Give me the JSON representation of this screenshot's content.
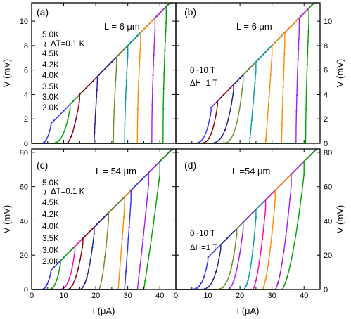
{
  "chart_data": [
    {
      "panel": "(a)",
      "type": "line",
      "xlabel": "I (μA)",
      "ylabel": "V (mV)",
      "xlim": [
        0,
        45
      ],
      "ylim": [
        0,
        11.5
      ],
      "xticks": [
        0,
        10,
        20,
        30,
        40
      ],
      "yticks": [
        0,
        2,
        4,
        6,
        8,
        10
      ],
      "y_axis_side": "left",
      "annotations": {
        "length": "L = 6 μm",
        "params": [
          "5.0K",
          "ΔT=0.1 K",
          "4.5K",
          "4.2K",
          "4.0K",
          "3.5K",
          "3.0K",
          "2.0K"
        ]
      },
      "normal_slope_mV_per_uA": 0.2667,
      "series": [
        {
          "color": "#3030ff",
          "switch_current": 6,
          "onset": 3,
          "knee": 2
        },
        {
          "color": "#00a000",
          "switch_current": 12,
          "onset": 6,
          "knee": 2.5
        },
        {
          "color": "#8b0000",
          "switch_current": 15,
          "onset": 11,
          "knee": 1.5
        },
        {
          "color": "#1c1c8c",
          "switch_current": 20.5,
          "onset": 19.5,
          "knee": 0.8
        },
        {
          "color": "#6b8e23",
          "switch_current": 26.5,
          "onset": 25.5,
          "knee": 0.6
        },
        {
          "color": "#00a0a0",
          "switch_current": 30,
          "onset": 29,
          "knee": 0.6
        },
        {
          "color": "#ff8c00",
          "switch_current": 34,
          "onset": 33,
          "knee": 0.5
        },
        {
          "color": "#a020f0",
          "switch_current": 38.5,
          "onset": 37.5,
          "knee": 0.5
        },
        {
          "color": "#00a000",
          "switch_current": 42,
          "onset": 41,
          "knee": 0.5
        }
      ]
    },
    {
      "panel": "(b)",
      "type": "line",
      "xlabel": "I (μA)",
      "ylabel": "V (mV)",
      "xlim": [
        0,
        45
      ],
      "ylim": [
        0,
        11.5
      ],
      "xticks": [
        0,
        10,
        20,
        30,
        40
      ],
      "yticks": [
        0,
        2,
        4,
        6,
        8,
        10
      ],
      "y_axis_side": "right",
      "annotations": {
        "length": "L = 6 μm",
        "params": [
          "0~10 T",
          "ΔH=1 T"
        ]
      },
      "normal_slope_mV_per_uA": 0.2667,
      "series": [
        {
          "color": "#3030ff",
          "switch_current": 11,
          "onset": 5,
          "knee": 3
        },
        {
          "color": "#8b0000",
          "switch_current": 13,
          "onset": 7,
          "knee": 3
        },
        {
          "color": "#1c1c8c",
          "switch_current": 18,
          "onset": 10,
          "knee": 3
        },
        {
          "color": "#6b8e23",
          "switch_current": 21,
          "onset": 14,
          "knee": 3
        },
        {
          "color": "#00a0a0",
          "switch_current": 25,
          "onset": 23,
          "knee": 1
        },
        {
          "color": "#ff8c00",
          "switch_current": 30,
          "onset": 28,
          "knee": 1
        },
        {
          "color": "#ff8c00",
          "switch_current": 34,
          "onset": 33,
          "knee": 0.8
        },
        {
          "color": "#a020f0",
          "switch_current": 38.5,
          "onset": 37.5,
          "knee": 0.6
        },
        {
          "color": "#00a000",
          "switch_current": 41.5,
          "onset": 40.5,
          "knee": 0.6
        }
      ]
    },
    {
      "panel": "(c)",
      "type": "line",
      "xlabel": "I (μA)",
      "ylabel": "V (mV)",
      "xlim": [
        0,
        45
      ],
      "ylim": [
        0,
        82
      ],
      "xticks": [
        0,
        10,
        20,
        30,
        40
      ],
      "yticks": [
        0,
        20,
        40,
        60,
        80
      ],
      "y_axis_side": "left",
      "annotations": {
        "length": "L = 54 μm",
        "params": [
          "5.0K",
          "ΔT=0.1 K",
          "4.5K",
          "4.2K",
          "4.0K",
          "3.5K",
          "3.0K",
          "2.0K"
        ]
      },
      "normal_slope_mV_per_uA": 1.8667,
      "series": [
        {
          "color": "#3030ff",
          "switch_current": 6,
          "onset": 3,
          "knee": 2
        },
        {
          "color": "#00a000",
          "switch_current": 9,
          "onset": 5,
          "knee": 2.5
        },
        {
          "color": "#ff00aa",
          "switch_current": 13.5,
          "onset": 8,
          "knee": 3
        },
        {
          "color": "#8b0000",
          "switch_current": 16,
          "onset": 11,
          "knee": 2
        },
        {
          "color": "#1c1c8c",
          "switch_current": 19.5,
          "onset": 15,
          "knee": 2
        },
        {
          "color": "#6b8e23",
          "switch_current": 24,
          "onset": 21,
          "knee": 1.5
        },
        {
          "color": "#ff8c00",
          "switch_current": 29,
          "onset": 27,
          "knee": 1
        },
        {
          "color": "#3030ff",
          "switch_current": 31,
          "onset": 29,
          "knee": 1
        },
        {
          "color": "#a020f0",
          "switch_current": 36.5,
          "onset": 33,
          "knee": 1
        },
        {
          "color": "#00a000",
          "switch_current": 40,
          "onset": 35,
          "knee": 1
        }
      ]
    },
    {
      "panel": "(d)",
      "type": "line",
      "xlabel": "I (μA)",
      "ylabel": "V (mV)",
      "xlim": [
        0,
        45
      ],
      "ylim": [
        0,
        82
      ],
      "xticks": [
        0,
        10,
        20,
        30,
        40
      ],
      "yticks": [
        0,
        20,
        40,
        60,
        80
      ],
      "y_axis_side": "right",
      "annotations": {
        "length": "L =54 μm",
        "params": [
          "0~10 T",
          "ΔH=1 T"
        ]
      },
      "normal_slope_mV_per_uA": 1.8667,
      "series": [
        {
          "color": "#3030ff",
          "switch_current": 10,
          "onset": 4,
          "knee": 3
        },
        {
          "color": "#1c1c8c",
          "switch_current": 14,
          "onset": 7,
          "knee": 3
        },
        {
          "color": "#6b8e23",
          "switch_current": 19,
          "onset": 12,
          "knee": 3
        },
        {
          "color": "#a020f0",
          "switch_current": 21,
          "onset": 16,
          "knee": 2
        },
        {
          "color": "#00a0a0",
          "switch_current": 25,
          "onset": 21,
          "knee": 2
        },
        {
          "color": "#ff00aa",
          "switch_current": 28,
          "onset": 24,
          "knee": 1.5
        },
        {
          "color": "#ff8c00",
          "switch_current": 31,
          "onset": 27,
          "knee": 1.5
        },
        {
          "color": "#a020f0",
          "switch_current": 36,
          "onset": 31,
          "knee": 1.5
        },
        {
          "color": "#00a000",
          "switch_current": 40,
          "onset": 33,
          "knee": 1.5
        }
      ]
    }
  ]
}
